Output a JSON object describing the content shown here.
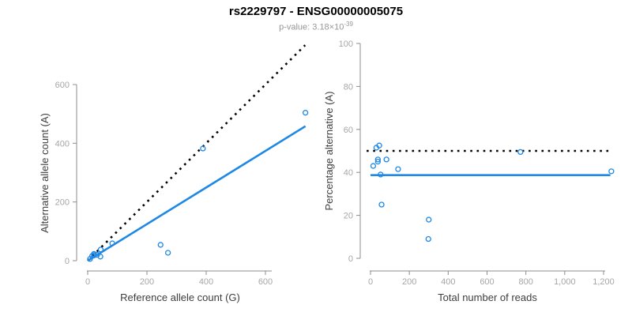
{
  "header": {
    "title": "rs2229797 - ENSG00000005075",
    "pvalue_prefix": "p-value: 3.18×10",
    "pvalue_exponent": "-39"
  },
  "colors": {
    "accent_blue": "#1e88e5",
    "dotted_black": "#000000",
    "axis_gray": "#8c8c8c",
    "tick_label_gray": "#a6a6a6",
    "axis_title_gray": "#3d3d3d",
    "subtitle_gray": "#969696"
  },
  "chart_data": [
    {
      "type": "scatter",
      "name": "allele-counts",
      "xlabel": "Reference allele count (G)",
      "ylabel": "Alternative allele count (A)",
      "x_ticks": [
        0,
        200,
        400,
        600
      ],
      "x_tick_labels": [
        "0",
        "200",
        "400",
        "600"
      ],
      "y_ticks": [
        0,
        200,
        400,
        600
      ],
      "y_tick_labels": [
        "0",
        "200",
        "400",
        "600"
      ],
      "xlim": [
        0,
        740
      ],
      "ylim": [
        0,
        745
      ],
      "grid": false,
      "points": [
        [
          8,
          6
        ],
        [
          15,
          16
        ],
        [
          21,
          18
        ],
        [
          22,
          19
        ],
        [
          21,
          23
        ],
        [
          32,
          20
        ],
        [
          43,
          14
        ],
        [
          44,
          38
        ],
        [
          83,
          59
        ],
        [
          246,
          54
        ],
        [
          271,
          27
        ],
        [
          389,
          382
        ],
        [
          735,
          504
        ]
      ],
      "lines": [
        {
          "name": "identity-line",
          "style": "dotted",
          "color": "#000000",
          "x": [
            0,
            734
          ],
          "y": [
            0,
            734
          ]
        },
        {
          "name": "regression-line",
          "style": "solid",
          "color": "#1e88e5",
          "x": [
            0,
            735
          ],
          "y": [
            0,
            458
          ]
        }
      ]
    },
    {
      "type": "scatter",
      "name": "percentage-vs-reads",
      "xlabel": "Total number of reads",
      "ylabel": "Percentage alternative (A)",
      "x_ticks": [
        0,
        200,
        400,
        600,
        800,
        1000,
        1200
      ],
      "x_tick_labels": [
        "0",
        "200",
        "400",
        "600",
        "800",
        "1,000",
        "1,200"
      ],
      "y_ticks": [
        0,
        20,
        40,
        60,
        80,
        100
      ],
      "y_tick_labels": [
        "0",
        "20",
        "40",
        "60",
        "80",
        "100"
      ],
      "xlim": [
        0,
        1250
      ],
      "ylim": [
        0,
        100
      ],
      "grid": false,
      "points": [
        [
          14,
          43
        ],
        [
          30,
          51.5
        ],
        [
          45,
          52.5
        ],
        [
          38,
          46
        ],
        [
          38,
          45
        ],
        [
          52,
          39
        ],
        [
          57,
          25
        ],
        [
          82,
          46
        ],
        [
          142,
          41.5
        ],
        [
          298,
          9
        ],
        [
          300,
          18
        ],
        [
          772,
          49.5
        ],
        [
          1240,
          40.5
        ]
      ],
      "lines": [
        {
          "name": "null-line",
          "style": "dotted",
          "color": "#000000",
          "x": [
            -20,
            1235
          ],
          "y": [
            50,
            50
          ]
        },
        {
          "name": "mean-line",
          "style": "solid",
          "color": "#1e88e5",
          "x": [
            0,
            1235
          ],
          "y": [
            38.7,
            38.7
          ]
        }
      ]
    }
  ]
}
